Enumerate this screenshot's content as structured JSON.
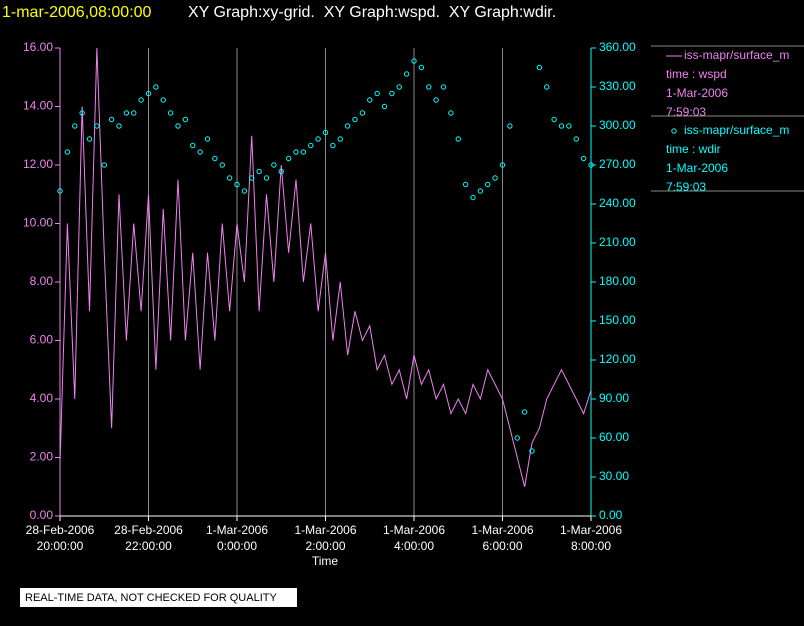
{
  "chart_data": {
    "type": "xy",
    "timestamp": "1-mar-2006,08:00:00",
    "title": "XY Graph:xy-grid.  XY Graph:wspd.  XY Graph:wdir.",
    "xlabel": "Time",
    "note": "REAL-TIME DATA, NOT CHECKED FOR QUALITY",
    "grid": true,
    "xlim": [
      "2006-02-28 20:00",
      "2006-03-01 08:00"
    ],
    "xticks": [
      {
        "value": "2006-02-28 20:00",
        "label": [
          "28-Feb-2006",
          "20:00:00"
        ]
      },
      {
        "value": "2006-02-28 22:00",
        "label": [
          "28-Feb-2006",
          "22:00:00"
        ]
      },
      {
        "value": "2006-03-01 00:00",
        "label": [
          "1-Mar-2006",
          "0:00:00"
        ]
      },
      {
        "value": "2006-03-01 02:00",
        "label": [
          "1-Mar-2006",
          "2:00:00"
        ]
      },
      {
        "value": "2006-03-01 04:00",
        "label": [
          "1-Mar-2006",
          "4:00:00"
        ]
      },
      {
        "value": "2006-03-01 06:00",
        "label": [
          "1-Mar-2006",
          "6:00:00"
        ]
      },
      {
        "value": "2006-03-01 08:00",
        "label": [
          "1-Mar-2006",
          "8:00:00"
        ]
      }
    ],
    "ylim": [
      0,
      16
    ],
    "yticks": [
      {
        "value": 0,
        "label": "0.00"
      },
      {
        "value": 2,
        "label": "2.00"
      },
      {
        "value": 4,
        "label": "4.00"
      },
      {
        "value": 6,
        "label": "6.00"
      },
      {
        "value": 8,
        "label": "8.00"
      },
      {
        "value": 10,
        "label": "10.00"
      },
      {
        "value": 12,
        "label": "12.00"
      },
      {
        "value": 14,
        "label": "14.00"
      },
      {
        "value": 16,
        "label": "16.00"
      }
    ],
    "y2lim": [
      0,
      360
    ],
    "y2ticks": [
      {
        "value": 0,
        "label": "0.00"
      },
      {
        "value": 30,
        "label": "30.00"
      },
      {
        "value": 60,
        "label": "60.00"
      },
      {
        "value": 90,
        "label": "90.00"
      },
      {
        "value": 120,
        "label": "120.00"
      },
      {
        "value": 150,
        "label": "150.00"
      },
      {
        "value": 180,
        "label": "180.00"
      },
      {
        "value": 210,
        "label": "210.00"
      },
      {
        "value": 240,
        "label": "240.00"
      },
      {
        "value": 270,
        "label": "270.00"
      },
      {
        "value": 300,
        "label": "300.00"
      },
      {
        "value": 330,
        "label": "330.00"
      },
      {
        "value": 360,
        "label": "360.00"
      }
    ],
    "x": [
      "2006-02-28 20:00",
      "2006-02-28 20:10",
      "2006-02-28 20:20",
      "2006-02-28 20:30",
      "2006-02-28 20:40",
      "2006-02-28 20:50",
      "2006-02-28 21:00",
      "2006-02-28 21:10",
      "2006-02-28 21:20",
      "2006-02-28 21:30",
      "2006-02-28 21:40",
      "2006-02-28 21:50",
      "2006-02-28 22:00",
      "2006-02-28 22:10",
      "2006-02-28 22:20",
      "2006-02-28 22:30",
      "2006-02-28 22:40",
      "2006-02-28 22:50",
      "2006-02-28 23:00",
      "2006-02-28 23:10",
      "2006-02-28 23:20",
      "2006-02-28 23:30",
      "2006-02-28 23:40",
      "2006-02-28 23:50",
      "2006-03-01 00:00",
      "2006-03-01 00:10",
      "2006-03-01 00:20",
      "2006-03-01 00:30",
      "2006-03-01 00:40",
      "2006-03-01 00:50",
      "2006-03-01 01:00",
      "2006-03-01 01:10",
      "2006-03-01 01:20",
      "2006-03-01 01:30",
      "2006-03-01 01:40",
      "2006-03-01 01:50",
      "2006-03-01 02:00",
      "2006-03-01 02:10",
      "2006-03-01 02:20",
      "2006-03-01 02:30",
      "2006-03-01 02:40",
      "2006-03-01 02:50",
      "2006-03-01 03:00",
      "2006-03-01 03:10",
      "2006-03-01 03:20",
      "2006-03-01 03:30",
      "2006-03-01 03:40",
      "2006-03-01 03:50",
      "2006-03-01 04:00",
      "2006-03-01 04:10",
      "2006-03-01 04:20",
      "2006-03-01 04:30",
      "2006-03-01 04:40",
      "2006-03-01 04:50",
      "2006-03-01 05:00",
      "2006-03-01 05:10",
      "2006-03-01 05:20",
      "2006-03-01 05:30",
      "2006-03-01 05:40",
      "2006-03-01 05:50",
      "2006-03-01 06:00",
      "2006-03-01 06:10",
      "2006-03-01 06:20",
      "2006-03-01 06:30",
      "2006-03-01 06:40",
      "2006-03-01 06:50",
      "2006-03-01 07:00",
      "2006-03-01 07:10",
      "2006-03-01 07:20",
      "2006-03-01 07:30",
      "2006-03-01 07:40",
      "2006-03-01 07:50",
      "2006-03-01 08:00"
    ],
    "series": [
      {
        "name": "iss-mapr/surface_m",
        "legend_lines": [
          "time : wspd",
          "1-Mar-2006",
          "7:59:03"
        ],
        "type": "line",
        "color": "#ee82ee",
        "values": [
          1.8,
          10,
          4,
          14,
          7,
          16,
          9,
          3,
          11,
          6,
          10,
          7,
          11,
          5,
          10.5,
          6,
          11.5,
          6,
          9,
          5,
          9,
          6,
          10,
          7,
          10,
          8,
          13,
          7,
          11,
          8,
          12,
          9,
          11.5,
          8,
          10,
          7,
          9,
          6,
          8,
          5.5,
          7,
          6,
          6.5,
          5,
          5.5,
          4.5,
          5,
          4,
          5.5,
          4.5,
          5,
          4,
          4.5,
          3.5,
          4,
          3.5,
          4.5,
          4,
          5,
          4.5,
          4,
          3,
          2,
          1,
          2.5,
          3,
          4,
          4.5,
          5,
          4.5,
          4,
          3.5,
          4.3
        ]
      },
      {
        "name": "iss-mapr/surface_m",
        "legend_lines": [
          "time : wdir",
          "1-Mar-2006",
          "7:59:03"
        ],
        "type": "scatter",
        "axis": "y2",
        "color": "#00ffff",
        "values": [
          250,
          280,
          300,
          310,
          290,
          300,
          270,
          305,
          300,
          310,
          310,
          320,
          325,
          330,
          320,
          310,
          300,
          305,
          285,
          280,
          290,
          275,
          270,
          260,
          255,
          250,
          260,
          265,
          260,
          270,
          265,
          275,
          280,
          280,
          285,
          290,
          295,
          285,
          290,
          300,
          305,
          310,
          320,
          325,
          315,
          325,
          330,
          340,
          350,
          345,
          330,
          320,
          330,
          310,
          290,
          255,
          245,
          250,
          255,
          260,
          270,
          300,
          60,
          80,
          50,
          345,
          330,
          305,
          300,
          300,
          290,
          275,
          270
        ]
      }
    ]
  }
}
